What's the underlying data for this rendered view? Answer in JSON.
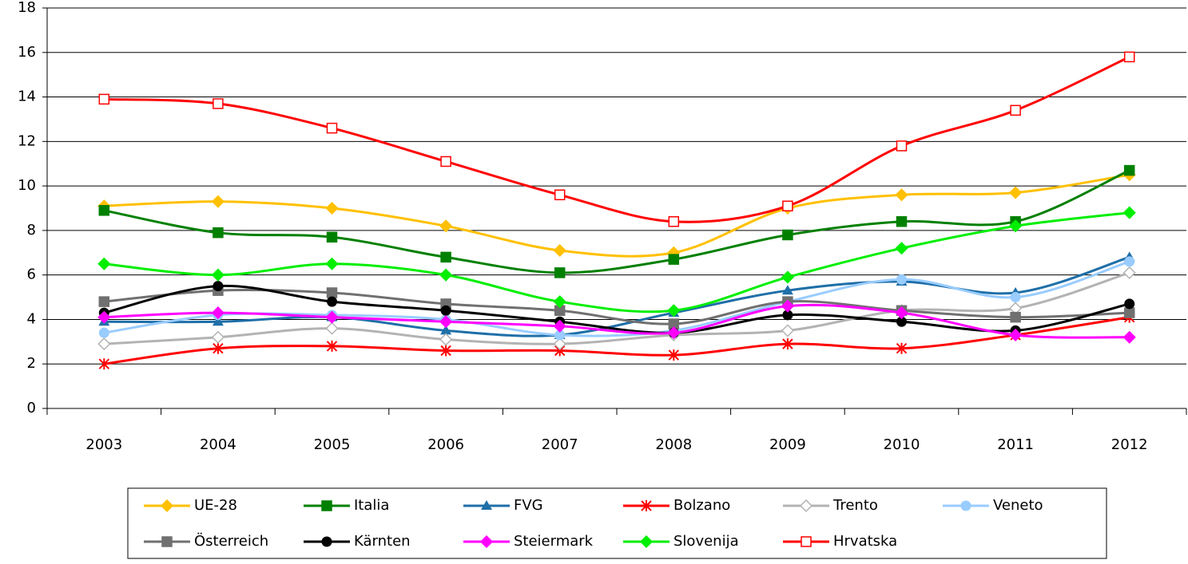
{
  "chart_data": {
    "type": "line",
    "categories": [
      "2003",
      "2004",
      "2005",
      "2006",
      "2007",
      "2008",
      "2009",
      "2010",
      "2011",
      "2012"
    ],
    "ylim": [
      0,
      18
    ],
    "yticks": [
      0,
      2,
      4,
      6,
      8,
      10,
      12,
      14,
      16,
      18
    ],
    "grid": true,
    "smooth": true,
    "legend": "bottom",
    "series": [
      {
        "name": "UE-28",
        "color": "#ffc000",
        "marker": "diamond",
        "values": [
          9.1,
          9.3,
          9.0,
          8.2,
          7.1,
          7.0,
          9.0,
          9.6,
          9.7,
          10.5
        ]
      },
      {
        "name": "Italia",
        "color": "#008000",
        "marker": "square",
        "values": [
          8.9,
          7.9,
          7.7,
          6.8,
          6.1,
          6.7,
          7.8,
          8.4,
          8.4,
          10.7
        ]
      },
      {
        "name": "FVG",
        "color": "#1f6fa8",
        "marker": "triangle",
        "values": [
          3.9,
          3.9,
          4.1,
          3.5,
          3.3,
          4.3,
          5.3,
          5.7,
          5.2,
          6.8
        ]
      },
      {
        "name": "Bolzano",
        "color": "#ff0000",
        "marker": "star",
        "values": [
          2.0,
          2.7,
          2.8,
          2.6,
          2.6,
          2.4,
          2.9,
          2.7,
          3.3,
          4.1
        ]
      },
      {
        "name": "Trento",
        "color": "#b3b3b3",
        "marker": "diamond-open",
        "values": [
          2.9,
          3.2,
          3.6,
          3.1,
          2.9,
          3.3,
          3.5,
          4.4,
          4.5,
          6.1
        ]
      },
      {
        "name": "Veneto",
        "color": "#99ccff",
        "marker": "circle",
        "values": [
          3.4,
          4.2,
          4.2,
          4.0,
          3.3,
          3.5,
          4.8,
          5.8,
          5.0,
          6.6
        ]
      },
      {
        "name": "Österreich",
        "color": "#707070",
        "marker": "square",
        "values": [
          4.8,
          5.3,
          5.2,
          4.7,
          4.4,
          3.8,
          4.8,
          4.4,
          4.1,
          4.3
        ]
      },
      {
        "name": "Kärnten",
        "color": "#000000",
        "marker": "circle",
        "values": [
          4.3,
          5.5,
          4.8,
          4.4,
          3.9,
          3.4,
          4.2,
          3.9,
          3.5,
          4.7
        ]
      },
      {
        "name": "Steiermark",
        "color": "#ff00ff",
        "marker": "diamond",
        "values": [
          4.1,
          4.3,
          4.1,
          3.9,
          3.7,
          3.4,
          4.6,
          4.3,
          3.3,
          3.2
        ]
      },
      {
        "name": "Slovenija",
        "color": "#00ee00",
        "marker": "diamond",
        "values": [
          6.5,
          6.0,
          6.5,
          6.0,
          4.8,
          4.4,
          5.9,
          7.2,
          8.2,
          8.8
        ]
      },
      {
        "name": "Hrvatska",
        "color": "#ff0000",
        "marker": "square-open",
        "values": [
          13.9,
          13.7,
          12.6,
          11.1,
          9.6,
          8.4,
          9.1,
          11.8,
          13.4,
          15.8
        ]
      }
    ]
  }
}
